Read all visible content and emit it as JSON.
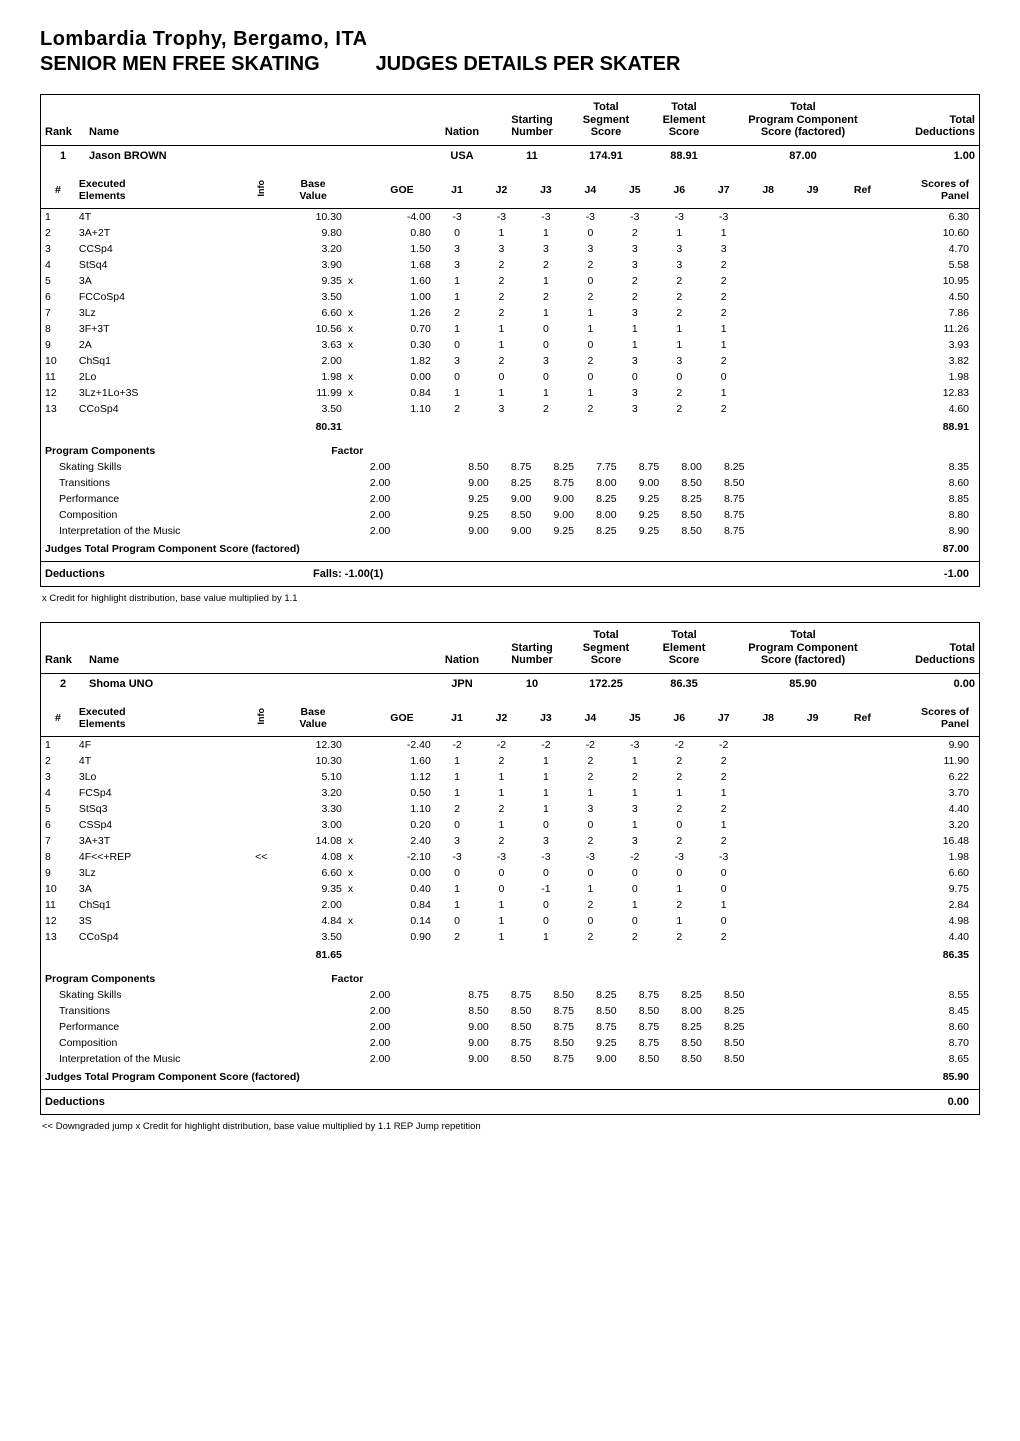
{
  "event": "Lombardia Trophy, Bergamo, ITA",
  "segment_left": "SENIOR MEN FREE SKATING",
  "segment_right": "JUDGES DETAILS PER SKATER",
  "header_labels": {
    "rank": "Rank",
    "name": "Name",
    "nation": "Nation",
    "starting_number": "Starting\nNumber",
    "tss": "Total\nSegment\nScore",
    "tes": "Total\nElement\nScore",
    "pcs": "Total\nProgram Component\nScore (factored)",
    "deductions": "Total\nDeductions"
  },
  "elem_headers": {
    "num": "#",
    "executed": "Executed\nElements",
    "info": "Info",
    "base": "Base\nValue",
    "goe": "GOE",
    "j1": "J1",
    "j2": "J2",
    "j3": "J3",
    "j4": "J4",
    "j5": "J5",
    "j6": "J6",
    "j7": "J7",
    "j8": "J8",
    "j9": "J9",
    "ref": "Ref",
    "sop": "Scores of\nPanel"
  },
  "pcs_labels": {
    "title": "Program Components",
    "factor": "Factor",
    "total": "Judges Total Program Component Score (factored)"
  },
  "deduction_label": "Deductions",
  "skaters": [
    {
      "rank": "1",
      "name": "Jason BROWN",
      "nation": "USA",
      "start": "11",
      "tss": "174.91",
      "tes": "88.91",
      "pcs": "87.00",
      "ded": "1.00",
      "elements": [
        {
          "n": "1",
          "el": "4T",
          "info": "",
          "bv": "10.30",
          "x": "",
          "goe": "-4.00",
          "j": [
            "-3",
            "-3",
            "-3",
            "-3",
            "-3",
            "-3",
            "-3"
          ],
          "sop": "6.30"
        },
        {
          "n": "2",
          "el": "3A+2T",
          "info": "",
          "bv": "9.80",
          "x": "",
          "goe": "0.80",
          "j": [
            "0",
            "1",
            "1",
            "0",
            "2",
            "1",
            "1"
          ],
          "sop": "10.60"
        },
        {
          "n": "3",
          "el": "CCSp4",
          "info": "",
          "bv": "3.20",
          "x": "",
          "goe": "1.50",
          "j": [
            "3",
            "3",
            "3",
            "3",
            "3",
            "3",
            "3"
          ],
          "sop": "4.70"
        },
        {
          "n": "4",
          "el": "StSq4",
          "info": "",
          "bv": "3.90",
          "x": "",
          "goe": "1.68",
          "j": [
            "3",
            "2",
            "2",
            "2",
            "3",
            "3",
            "2"
          ],
          "sop": "5.58"
        },
        {
          "n": "5",
          "el": "3A",
          "info": "",
          "bv": "9.35",
          "x": "x",
          "goe": "1.60",
          "j": [
            "1",
            "2",
            "1",
            "0",
            "2",
            "2",
            "2"
          ],
          "sop": "10.95"
        },
        {
          "n": "6",
          "el": "FCCoSp4",
          "info": "",
          "bv": "3.50",
          "x": "",
          "goe": "1.00",
          "j": [
            "1",
            "2",
            "2",
            "2",
            "2",
            "2",
            "2"
          ],
          "sop": "4.50"
        },
        {
          "n": "7",
          "el": "3Lz",
          "info": "",
          "bv": "6.60",
          "x": "x",
          "goe": "1.26",
          "j": [
            "2",
            "2",
            "1",
            "1",
            "3",
            "2",
            "2"
          ],
          "sop": "7.86"
        },
        {
          "n": "8",
          "el": "3F+3T",
          "info": "",
          "bv": "10.56",
          "x": "x",
          "goe": "0.70",
          "j": [
            "1",
            "1",
            "0",
            "1",
            "1",
            "1",
            "1"
          ],
          "sop": "11.26"
        },
        {
          "n": "9",
          "el": "2A",
          "info": "",
          "bv": "3.63",
          "x": "x",
          "goe": "0.30",
          "j": [
            "0",
            "1",
            "0",
            "0",
            "1",
            "1",
            "1"
          ],
          "sop": "3.93"
        },
        {
          "n": "10",
          "el": "ChSq1",
          "info": "",
          "bv": "2.00",
          "x": "",
          "goe": "1.82",
          "j": [
            "3",
            "2",
            "3",
            "2",
            "3",
            "3",
            "2"
          ],
          "sop": "3.82"
        },
        {
          "n": "11",
          "el": "2Lo",
          "info": "",
          "bv": "1.98",
          "x": "x",
          "goe": "0.00",
          "j": [
            "0",
            "0",
            "0",
            "0",
            "0",
            "0",
            "0"
          ],
          "sop": "1.98"
        },
        {
          "n": "12",
          "el": "3Lz+1Lo+3S",
          "info": "",
          "bv": "11.99",
          "x": "x",
          "goe": "0.84",
          "j": [
            "1",
            "1",
            "1",
            "1",
            "3",
            "2",
            "1"
          ],
          "sop": "12.83"
        },
        {
          "n": "13",
          "el": "CCoSp4",
          "info": "",
          "bv": "3.50",
          "x": "",
          "goe": "1.10",
          "j": [
            "2",
            "3",
            "2",
            "2",
            "3",
            "2",
            "2"
          ],
          "sop": "4.60"
        }
      ],
      "bv_total": "80.31",
      "sop_total": "88.91",
      "components": [
        {
          "name": "Skating Skills",
          "factor": "2.00",
          "j": [
            "8.50",
            "8.75",
            "8.25",
            "7.75",
            "8.75",
            "8.00",
            "8.25"
          ],
          "score": "8.35"
        },
        {
          "name": "Transitions",
          "factor": "2.00",
          "j": [
            "9.00",
            "8.25",
            "8.75",
            "8.00",
            "9.00",
            "8.50",
            "8.50"
          ],
          "score": "8.60"
        },
        {
          "name": "Performance",
          "factor": "2.00",
          "j": [
            "9.25",
            "9.00",
            "9.00",
            "8.25",
            "9.25",
            "8.25",
            "8.75"
          ],
          "score": "8.85"
        },
        {
          "name": "Composition",
          "factor": "2.00",
          "j": [
            "9.25",
            "8.50",
            "9.00",
            "8.00",
            "9.25",
            "8.50",
            "8.75"
          ],
          "score": "8.80"
        },
        {
          "name": "Interpretation of the Music",
          "factor": "2.00",
          "j": [
            "9.00",
            "9.00",
            "9.25",
            "8.25",
            "9.25",
            "8.50",
            "8.75"
          ],
          "score": "8.90"
        }
      ],
      "pcs_total": "87.00",
      "ded_detail": "Falls:   -1.00(1)",
      "ded_value": "-1.00",
      "footnote": "x  Credit for highlight distribution, base value multiplied by 1.1"
    },
    {
      "rank": "2",
      "name": "Shoma UNO",
      "nation": "JPN",
      "start": "10",
      "tss": "172.25",
      "tes": "86.35",
      "pcs": "85.90",
      "ded": "0.00",
      "elements": [
        {
          "n": "1",
          "el": "4F",
          "info": "",
          "bv": "12.30",
          "x": "",
          "goe": "-2.40",
          "j": [
            "-2",
            "-2",
            "-2",
            "-2",
            "-3",
            "-2",
            "-2"
          ],
          "sop": "9.90"
        },
        {
          "n": "2",
          "el": "4T",
          "info": "",
          "bv": "10.30",
          "x": "",
          "goe": "1.60",
          "j": [
            "1",
            "2",
            "1",
            "2",
            "1",
            "2",
            "2"
          ],
          "sop": "11.90"
        },
        {
          "n": "3",
          "el": "3Lo",
          "info": "",
          "bv": "5.10",
          "x": "",
          "goe": "1.12",
          "j": [
            "1",
            "1",
            "1",
            "2",
            "2",
            "2",
            "2"
          ],
          "sop": "6.22"
        },
        {
          "n": "4",
          "el": "FCSp4",
          "info": "",
          "bv": "3.20",
          "x": "",
          "goe": "0.50",
          "j": [
            "1",
            "1",
            "1",
            "1",
            "1",
            "1",
            "1"
          ],
          "sop": "3.70"
        },
        {
          "n": "5",
          "el": "StSq3",
          "info": "",
          "bv": "3.30",
          "x": "",
          "goe": "1.10",
          "j": [
            "2",
            "2",
            "1",
            "3",
            "3",
            "2",
            "2"
          ],
          "sop": "4.40"
        },
        {
          "n": "6",
          "el": "CSSp4",
          "info": "",
          "bv": "3.00",
          "x": "",
          "goe": "0.20",
          "j": [
            "0",
            "1",
            "0",
            "0",
            "1",
            "0",
            "1"
          ],
          "sop": "3.20"
        },
        {
          "n": "7",
          "el": "3A+3T",
          "info": "",
          "bv": "14.08",
          "x": "x",
          "goe": "2.40",
          "j": [
            "3",
            "2",
            "3",
            "2",
            "3",
            "2",
            "2"
          ],
          "sop": "16.48"
        },
        {
          "n": "8",
          "el": "4F<<+REP",
          "info": "<<",
          "bv": "4.08",
          "x": "x",
          "goe": "-2.10",
          "j": [
            "-3",
            "-3",
            "-3",
            "-3",
            "-2",
            "-3",
            "-3"
          ],
          "sop": "1.98"
        },
        {
          "n": "9",
          "el": "3Lz",
          "info": "",
          "bv": "6.60",
          "x": "x",
          "goe": "0.00",
          "j": [
            "0",
            "0",
            "0",
            "0",
            "0",
            "0",
            "0"
          ],
          "sop": "6.60"
        },
        {
          "n": "10",
          "el": "3A",
          "info": "",
          "bv": "9.35",
          "x": "x",
          "goe": "0.40",
          "j": [
            "1",
            "0",
            "-1",
            "1",
            "0",
            "1",
            "0"
          ],
          "sop": "9.75"
        },
        {
          "n": "11",
          "el": "ChSq1",
          "info": "",
          "bv": "2.00",
          "x": "",
          "goe": "0.84",
          "j": [
            "1",
            "1",
            "0",
            "2",
            "1",
            "2",
            "1"
          ],
          "sop": "2.84"
        },
        {
          "n": "12",
          "el": "3S",
          "info": "",
          "bv": "4.84",
          "x": "x",
          "goe": "0.14",
          "j": [
            "0",
            "1",
            "0",
            "0",
            "0",
            "1",
            "0"
          ],
          "sop": "4.98"
        },
        {
          "n": "13",
          "el": "CCoSp4",
          "info": "",
          "bv": "3.50",
          "x": "",
          "goe": "0.90",
          "j": [
            "2",
            "1",
            "1",
            "2",
            "2",
            "2",
            "2"
          ],
          "sop": "4.40"
        }
      ],
      "bv_total": "81.65",
      "sop_total": "86.35",
      "components": [
        {
          "name": "Skating Skills",
          "factor": "2.00",
          "j": [
            "8.75",
            "8.75",
            "8.50",
            "8.25",
            "8.75",
            "8.25",
            "8.50"
          ],
          "score": "8.55"
        },
        {
          "name": "Transitions",
          "factor": "2.00",
          "j": [
            "8.50",
            "8.50",
            "8.75",
            "8.50",
            "8.50",
            "8.00",
            "8.25"
          ],
          "score": "8.45"
        },
        {
          "name": "Performance",
          "factor": "2.00",
          "j": [
            "9.00",
            "8.50",
            "8.75",
            "8.75",
            "8.75",
            "8.25",
            "8.25"
          ],
          "score": "8.60"
        },
        {
          "name": "Composition",
          "factor": "2.00",
          "j": [
            "9.00",
            "8.75",
            "8.50",
            "9.25",
            "8.75",
            "8.50",
            "8.50"
          ],
          "score": "8.70"
        },
        {
          "name": "Interpretation of the Music",
          "factor": "2.00",
          "j": [
            "9.00",
            "8.50",
            "8.75",
            "9.00",
            "8.50",
            "8.50",
            "8.50"
          ],
          "score": "8.65"
        }
      ],
      "pcs_total": "85.90",
      "ded_detail": "",
      "ded_value": "0.00",
      "footnote": "<<  Downgraded jump   x  Credit for highlight distribution, base value multiplied by 1.1   REP Jump repetition"
    }
  ]
}
